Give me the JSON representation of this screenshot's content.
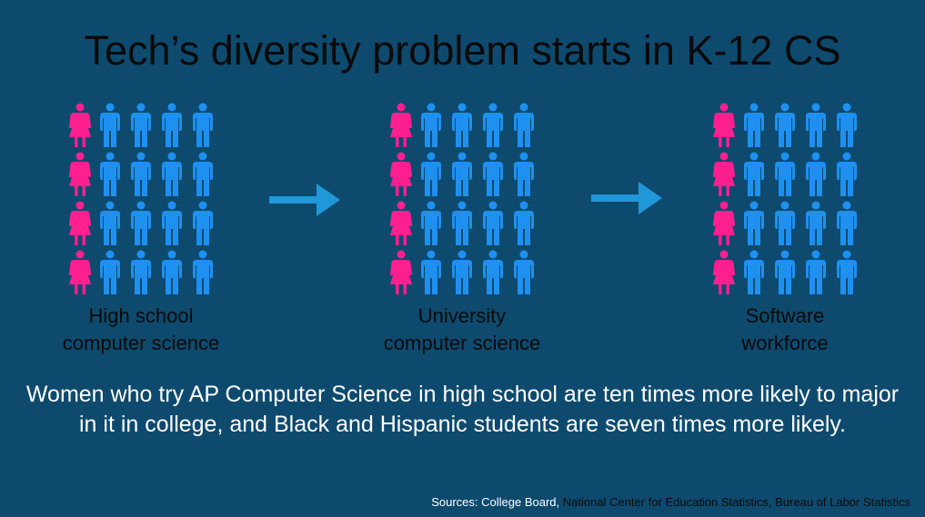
{
  "title": "Tech’s diversity problem starts in K-12 CS",
  "colors": {
    "background": "#0d4a6e",
    "female": "#ff1f8e",
    "male": "#1e90f0",
    "arrow": "#1f97d8"
  },
  "groups": [
    {
      "caption_line1": "High school",
      "caption_line2": "computer science",
      "rows": 4,
      "columns": 5,
      "female_per_row": 1
    },
    {
      "caption_line1": "University",
      "caption_line2": "computer science",
      "rows": 4,
      "columns": 5,
      "female_per_row": 1
    },
    {
      "caption_line1": "Software",
      "caption_line2": "workforce",
      "rows": 4,
      "columns": 5,
      "female_per_row": 1
    }
  ],
  "body_text": "Women who try AP Computer Science in high school are ten times more likely to major in it in college, and Black and Hispanic students are seven times more likely.",
  "sources": {
    "lead": "Sources: College Board,",
    "rest": " National Center for Education Statistics, Bureau of Labor Statistics"
  }
}
